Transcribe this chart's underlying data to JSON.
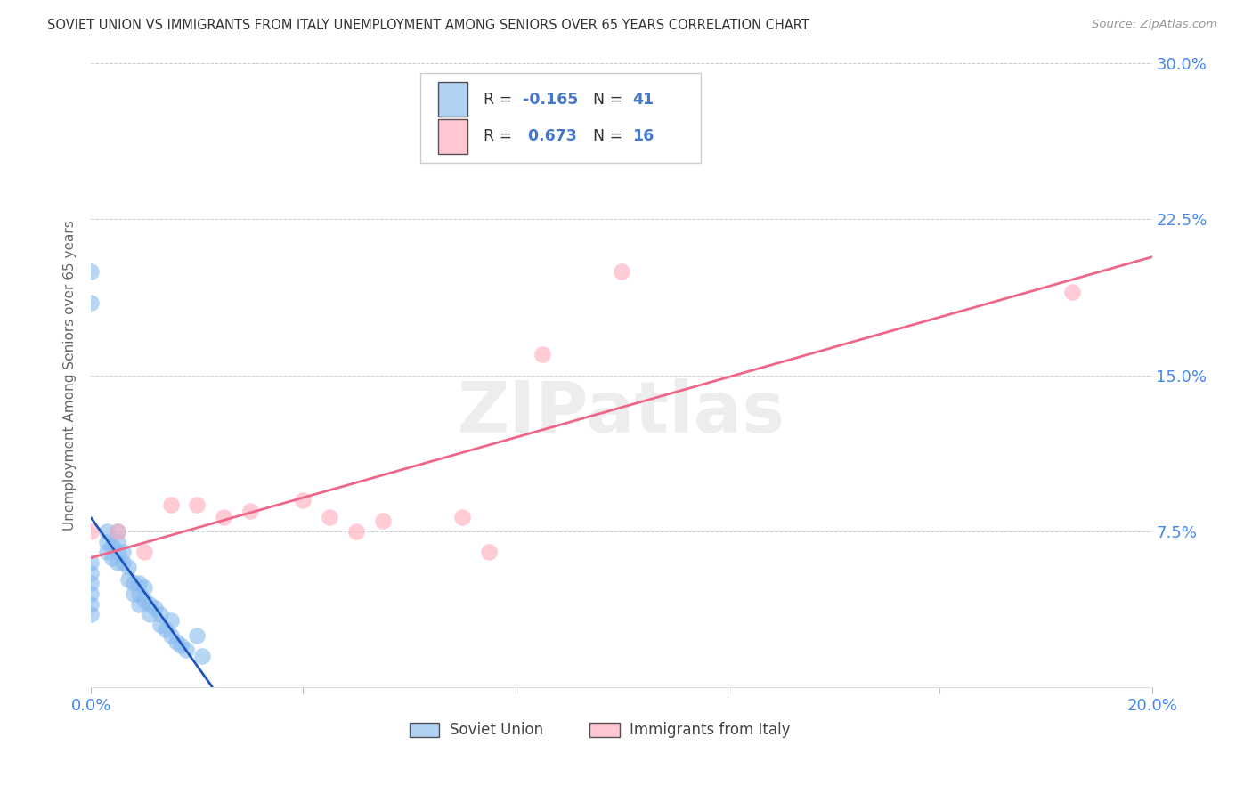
{
  "title": "SOVIET UNION VS IMMIGRANTS FROM ITALY UNEMPLOYMENT AMONG SENIORS OVER 65 YEARS CORRELATION CHART",
  "source": "Source: ZipAtlas.com",
  "ylabel": "Unemployment Among Seniors over 65 years",
  "xlim": [
    0.0,
    0.2
  ],
  "ylim": [
    0.0,
    0.3
  ],
  "xticks": [
    0.0,
    0.04,
    0.08,
    0.12,
    0.16,
    0.2
  ],
  "yticks": [
    0.0,
    0.075,
    0.15,
    0.225,
    0.3
  ],
  "ytick_labels": [
    "",
    "7.5%",
    "15.0%",
    "22.5%",
    "30.0%"
  ],
  "soviet_R": -0.165,
  "soviet_N": 41,
  "italy_R": 0.673,
  "italy_N": 16,
  "soviet_color": "#88BBEE",
  "italy_color": "#FFAABB",
  "soviet_line_color": "#2255BB",
  "italy_line_color": "#EE6688",
  "watermark_text": "ZIPatlas",
  "legend_text_color": "#333333",
  "legend_r_soviet_color": "#4477CC",
  "legend_r_italy_color": "#4477CC",
  "legend_n_color": "#4477CC",
  "axis_tick_color": "#4488EE",
  "grid_color": "#CCCCCC",
  "soviet_points_x": [
    0.0,
    0.0,
    0.0,
    0.0,
    0.0,
    0.0,
    0.0,
    0.0,
    0.003,
    0.003,
    0.003,
    0.004,
    0.004,
    0.005,
    0.005,
    0.005,
    0.005,
    0.006,
    0.006,
    0.007,
    0.007,
    0.008,
    0.008,
    0.009,
    0.009,
    0.009,
    0.01,
    0.01,
    0.011,
    0.011,
    0.012,
    0.013,
    0.013,
    0.014,
    0.015,
    0.015,
    0.016,
    0.017,
    0.018,
    0.02,
    0.021
  ],
  "soviet_points_y": [
    0.2,
    0.185,
    0.06,
    0.055,
    0.05,
    0.045,
    0.04,
    0.035,
    0.075,
    0.07,
    0.065,
    0.068,
    0.062,
    0.075,
    0.07,
    0.065,
    0.06,
    0.065,
    0.06,
    0.058,
    0.052,
    0.05,
    0.045,
    0.05,
    0.045,
    0.04,
    0.048,
    0.042,
    0.04,
    0.035,
    0.038,
    0.035,
    0.03,
    0.028,
    0.032,
    0.025,
    0.022,
    0.02,
    0.018,
    0.025,
    0.015
  ],
  "italy_points_x": [
    0.0,
    0.005,
    0.01,
    0.015,
    0.02,
    0.025,
    0.03,
    0.04,
    0.045,
    0.05,
    0.055,
    0.07,
    0.075,
    0.085,
    0.1,
    0.185
  ],
  "italy_points_y": [
    0.075,
    0.075,
    0.065,
    0.088,
    0.088,
    0.082,
    0.085,
    0.09,
    0.082,
    0.075,
    0.08,
    0.082,
    0.065,
    0.16,
    0.2,
    0.19
  ]
}
